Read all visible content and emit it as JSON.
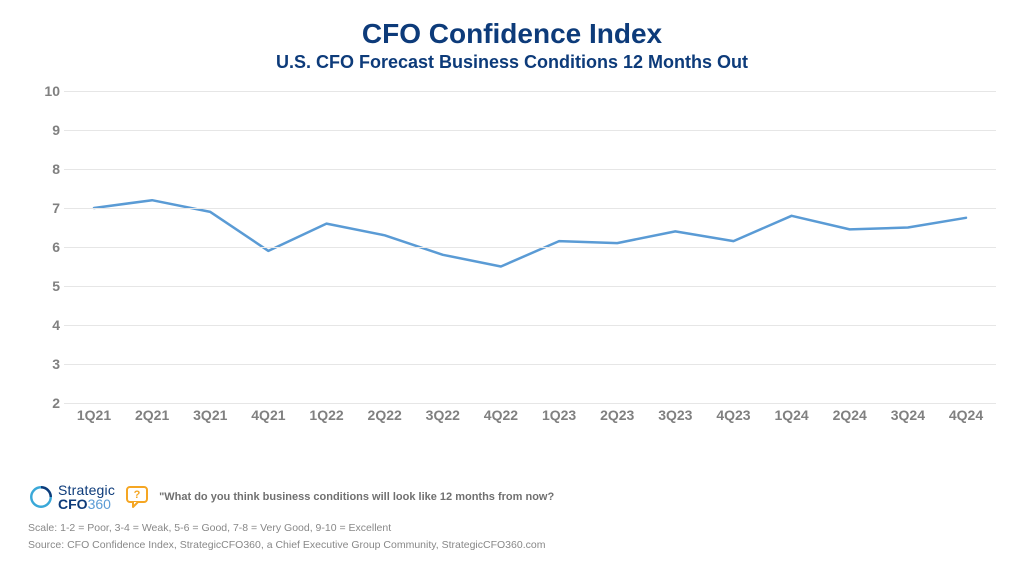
{
  "header": {
    "title": "CFO Confidence Index",
    "title_fontsize": 28,
    "title_color": "#0d3b7a",
    "subtitle": "U.S. CFO Forecast Business Conditions 12 Months Out",
    "subtitle_fontsize": 18,
    "subtitle_color": "#0d3b7a"
  },
  "chart": {
    "type": "line",
    "background_color": "#ffffff",
    "grid_color": "#e6e6e6",
    "axis_label_color": "#808080",
    "axis_label_fontsize": 14,
    "ylim": [
      2,
      10
    ],
    "yticks": [
      2,
      3,
      4,
      5,
      6,
      7,
      8,
      9,
      10
    ],
    "x_categories": [
      "1Q21",
      "2Q21",
      "3Q21",
      "4Q21",
      "1Q22",
      "2Q22",
      "3Q22",
      "4Q22",
      "1Q23",
      "2Q23",
      "3Q23",
      "4Q23",
      "1Q24",
      "2Q24",
      "3Q24",
      "4Q24"
    ],
    "series": [
      {
        "name": "forecast",
        "color": "#5a9bd5",
        "line_width": 2.5,
        "marker": "none",
        "values": [
          7.0,
          7.2,
          6.9,
          5.9,
          6.6,
          6.3,
          5.8,
          5.5,
          6.15,
          6.1,
          6.4,
          6.15,
          6.8,
          6.45,
          6.5,
          6.75
        ]
      }
    ]
  },
  "footer": {
    "logo_name_top": "Strategic",
    "logo_name_bot_a": "CFO",
    "logo_name_bot_b": "360",
    "logo_ring_outer": "#3aa8d8",
    "logo_ring_inner": "#0d3b7a",
    "speech_icon_color": "#f5a623",
    "question_text": "\"What do you think business conditions will look like 12 months from now?",
    "scale_text": "Scale: 1-2 = Poor, 3-4 = Weak, 5-6 = Good, 7-8 = Very Good, 9-10 = Excellent",
    "source_text": "Source: CFO Confidence Index, StrategicCFO360, a Chief Executive Group Community, StrategicCFO360.com"
  }
}
